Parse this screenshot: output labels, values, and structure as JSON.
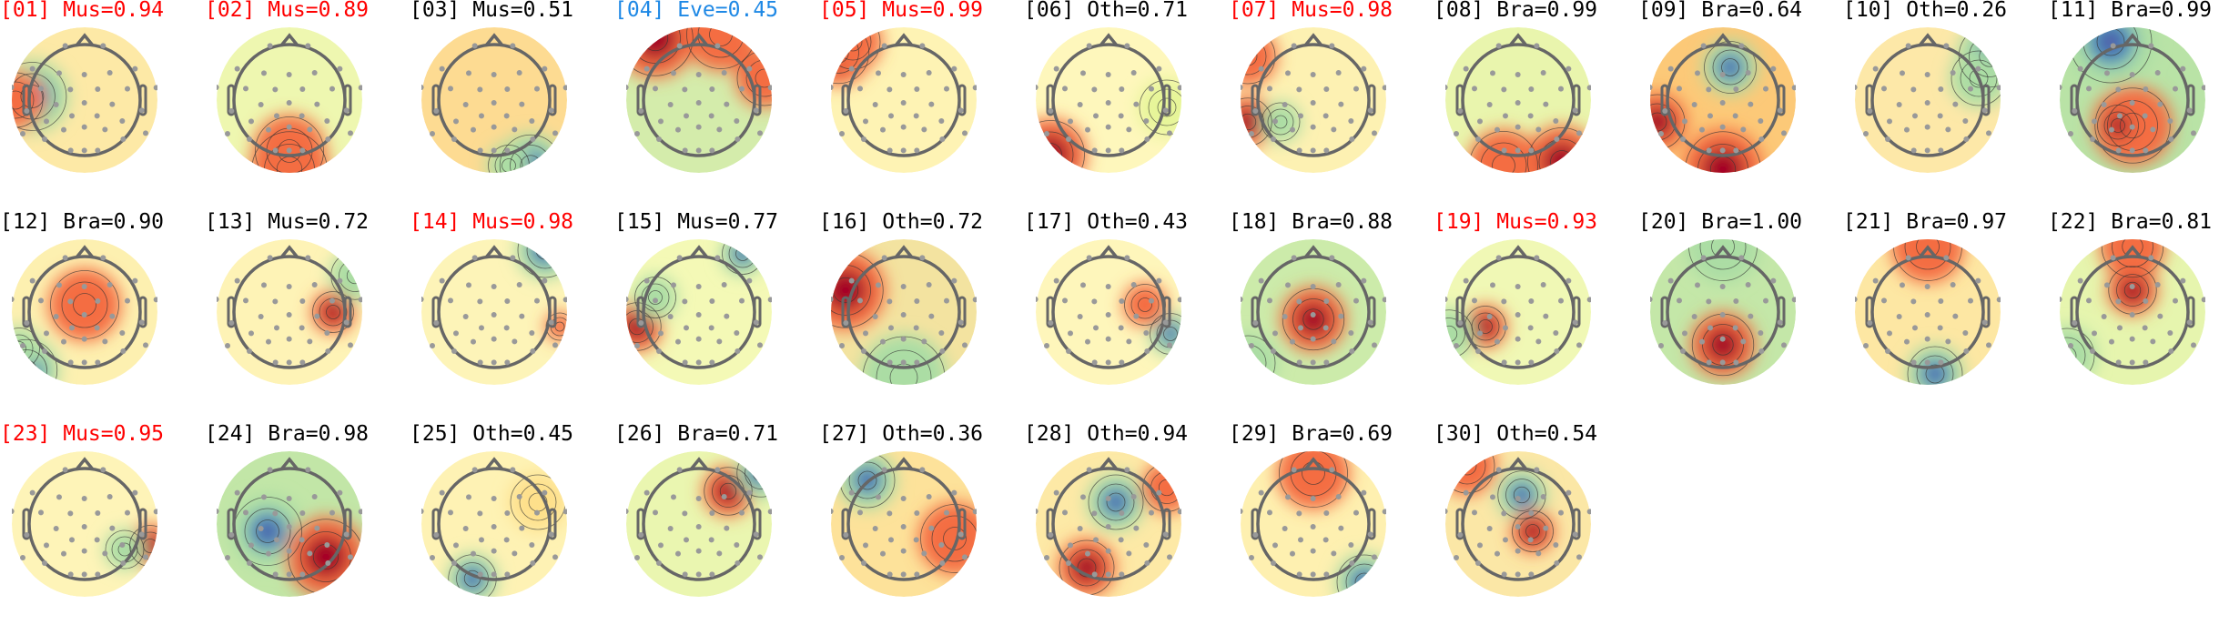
{
  "colormap": {
    "red": "#a50026",
    "orange": "#f46d43",
    "yellow": "#ffffbf",
    "green": "#abdda4",
    "blue": "#3288bd",
    "deep_blue": "#5e4fa2"
  },
  "label_colors": {
    "muscle_flagged": "#ff0000",
    "eye": "#1e88e5",
    "default": "#000000"
  },
  "components": [
    {
      "title": "[01] Mus=0.94",
      "color": "#ff0000"
    },
    {
      "title": "[02] Mus=0.89",
      "color": "#ff0000"
    },
    {
      "title": "[03] Mus=0.51",
      "color": "#000000"
    },
    {
      "title": "[04] Eve=0.45",
      "color": "#1e88e5"
    },
    {
      "title": "[05] Mus=0.99",
      "color": "#ff0000"
    },
    {
      "title": "[06] Oth=0.71",
      "color": "#000000"
    },
    {
      "title": "[07] Mus=0.98",
      "color": "#ff0000"
    },
    {
      "title": "[08] Bra=0.99",
      "color": "#000000"
    },
    {
      "title": "[09] Bra=0.64",
      "color": "#000000"
    },
    {
      "title": "[10] Oth=0.26",
      "color": "#000000"
    },
    {
      "title": "[11] Bra=0.99",
      "color": "#000000"
    },
    {
      "title": "[12] Bra=0.90",
      "color": "#000000"
    },
    {
      "title": "[13] Mus=0.72",
      "color": "#000000"
    },
    {
      "title": "[14] Mus=0.98",
      "color": "#ff0000"
    },
    {
      "title": "[15] Mus=0.77",
      "color": "#000000"
    },
    {
      "title": "[16] Oth=0.72",
      "color": "#000000"
    },
    {
      "title": "[17] Oth=0.43",
      "color": "#000000"
    },
    {
      "title": "[18] Bra=0.88",
      "color": "#000000"
    },
    {
      "title": "[19] Mus=0.93",
      "color": "#ff0000"
    },
    {
      "title": "[20] Bra=1.00",
      "color": "#000000"
    },
    {
      "title": "[21] Bra=0.97",
      "color": "#000000"
    },
    {
      "title": "[22] Bra=0.81",
      "color": "#000000"
    },
    {
      "title": "[23] Mus=0.95",
      "color": "#ff0000"
    },
    {
      "title": "[24] Bra=0.98",
      "color": "#000000"
    },
    {
      "title": "[25] Oth=0.45",
      "color": "#000000"
    },
    {
      "title": "[26] Bra=0.71",
      "color": "#000000"
    },
    {
      "title": "[27] Oth=0.36",
      "color": "#000000"
    },
    {
      "title": "[28] Oth=0.94",
      "color": "#000000"
    },
    {
      "title": "[29] Bra=0.69",
      "color": "#000000"
    },
    {
      "title": "[30] Oth=0.54",
      "color": "#000000"
    }
  ]
}
